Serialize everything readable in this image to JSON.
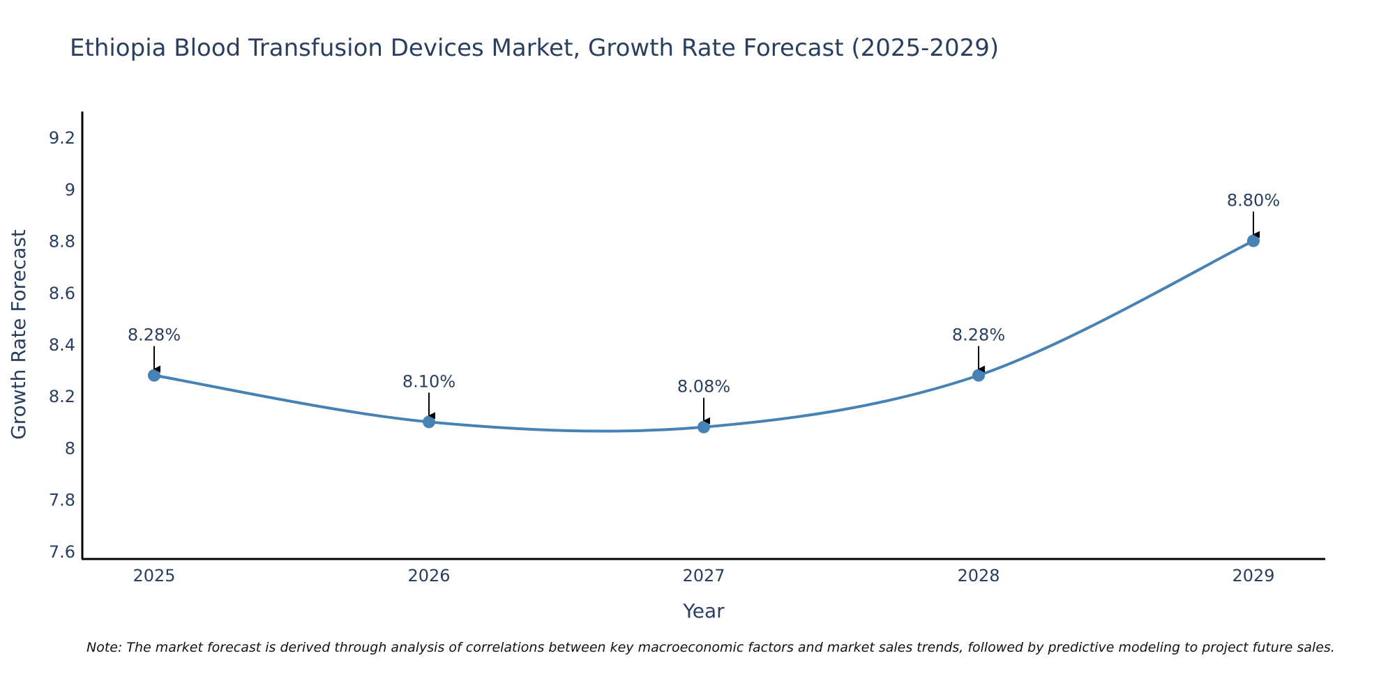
{
  "chart_data": {
    "type": "line",
    "title": "Ethiopia Blood Transfusion Devices Market, Growth Rate Forecast (2025-2029)",
    "xlabel": "Year",
    "ylabel": "Growth Rate Forecast",
    "x": [
      "2025",
      "2026",
      "2027",
      "2028",
      "2029"
    ],
    "series": [
      {
        "name": "Growth Rate Forecast",
        "values": [
          8.28,
          8.1,
          8.08,
          8.28,
          8.8
        ]
      }
    ],
    "annotations": [
      "8.28%",
      "8.10%",
      "8.08%",
      "8.28%",
      "8.80%"
    ],
    "yticks": [
      "7.6",
      "7.8",
      "8",
      "8.2",
      "8.4",
      "8.6",
      "8.8",
      "9",
      "9.2"
    ],
    "ylim": [
      7.57,
      9.3
    ],
    "grid": false,
    "line_color": "#4682b4",
    "marker_color": "#4682b4"
  },
  "note": "Note: The market forecast is derived through analysis of correlations between key macroeconomic factors and market sales trends, followed by predictive modeling to project future sales."
}
